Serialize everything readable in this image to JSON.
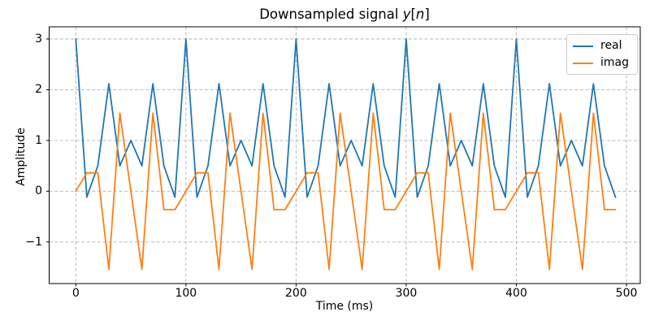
{
  "figure_title": "Downsampled signal y[n]",
  "title_parts": [
    {
      "text": "Downsampled signal ",
      "italic": false
    },
    {
      "text": "y",
      "italic": true
    },
    {
      "text": "[",
      "italic": false
    },
    {
      "text": "n",
      "italic": true
    },
    {
      "text": "]",
      "italic": false
    }
  ],
  "chart_data": {
    "type": "line",
    "title": "Downsampled signal y[n]",
    "xlabel": "Time (ms)",
    "ylabel": "Amplitude",
    "x": [
      0,
      10,
      20,
      30,
      40,
      50,
      60,
      70,
      80,
      90,
      100,
      110,
      120,
      130,
      140,
      150,
      160,
      170,
      180,
      190,
      200,
      210,
      220,
      230,
      240,
      250,
      260,
      270,
      280,
      290,
      300,
      310,
      320,
      330,
      340,
      350,
      360,
      370,
      380,
      390,
      400,
      410,
      420,
      430,
      440,
      450,
      460,
      470,
      480,
      490
    ],
    "series": [
      {
        "name": "real",
        "color": "#1f77b4",
        "values": [
          3.0,
          -0.118,
          0.5,
          2.118,
          0.5,
          1.0,
          0.5,
          2.118,
          0.5,
          -0.118,
          3.0,
          -0.118,
          0.5,
          2.118,
          0.5,
          1.0,
          0.5,
          2.118,
          0.5,
          -0.118,
          3.0,
          -0.118,
          0.5,
          2.118,
          0.5,
          1.0,
          0.5,
          2.118,
          0.5,
          -0.118,
          3.0,
          -0.118,
          0.5,
          2.118,
          0.5,
          1.0,
          0.5,
          2.118,
          0.5,
          -0.118,
          3.0,
          -0.118,
          0.5,
          2.118,
          0.5,
          1.0,
          0.5,
          2.118,
          0.5,
          -0.118
        ]
      },
      {
        "name": "imag",
        "color": "#ff7f0e",
        "values": [
          0.0,
          0.363,
          0.363,
          -1.539,
          1.539,
          0.0,
          -1.539,
          1.539,
          -0.363,
          -0.363,
          0.0,
          0.363,
          0.363,
          -1.539,
          1.539,
          0.0,
          -1.539,
          1.539,
          -0.363,
          -0.363,
          0.0,
          0.363,
          0.363,
          -1.539,
          1.539,
          0.0,
          -1.539,
          1.539,
          -0.363,
          -0.363,
          0.0,
          0.363,
          0.363,
          -1.539,
          1.539,
          0.0,
          -1.539,
          1.539,
          -0.363,
          -0.363,
          0.0,
          0.363,
          0.363,
          -1.539,
          1.539,
          0.0,
          -1.539,
          1.539,
          -0.363,
          -0.363
        ]
      }
    ],
    "xlim": [
      -24.2,
      512.5
    ],
    "ylim": [
      -1.82,
      3.24
    ],
    "xticks": {
      "values": [
        0,
        100,
        200,
        300,
        400,
        500
      ],
      "labels": [
        "0",
        "100",
        "200",
        "300",
        "400",
        "500"
      ]
    },
    "yticks": {
      "values": [
        -1,
        0,
        1,
        2,
        3
      ],
      "labels": [
        "−1",
        "0",
        "1",
        "2",
        "3"
      ]
    },
    "grid": true,
    "grid_style": "dashed",
    "grid_color": "#b0b0b0",
    "spine_color": "#000000",
    "background": "#ffffff",
    "line_width": 1.8,
    "legend": {
      "position": "upper right",
      "entries": [
        "real",
        "imag"
      ]
    }
  }
}
